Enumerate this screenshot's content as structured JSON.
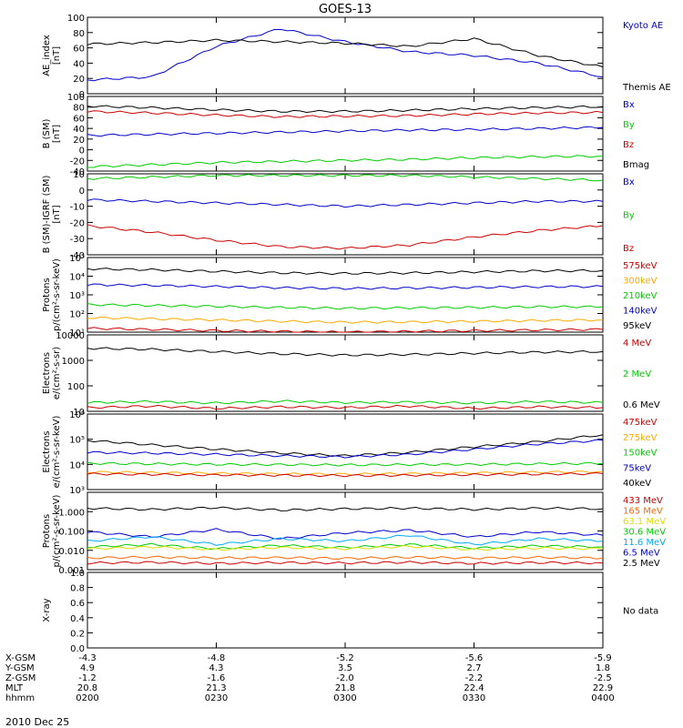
{
  "title": "GOES-13",
  "date_label": "2010 Dec 25",
  "ephemeris": {
    "rows": [
      {
        "label": "X-GSM",
        "values": [
          "-4.3",
          "-4.8",
          "-5.2",
          "-5.6",
          "-5.9"
        ]
      },
      {
        "label": "Y-GSM",
        "values": [
          "4.9",
          "4.3",
          "3.5",
          "2.7",
          "1.8"
        ]
      },
      {
        "label": "Z-GSM",
        "values": [
          "-1.2",
          "-1.6",
          "-2.0",
          "-2.2",
          "-2.5"
        ]
      },
      {
        "label": "MLT",
        "values": [
          "20.8",
          "21.3",
          "21.8",
          "22.4",
          "22.9"
        ]
      },
      {
        "label": "hhmm",
        "values": [
          "0200",
          "0230",
          "0300",
          "0330",
          "0400"
        ]
      }
    ]
  },
  "colors": {
    "black": "#000000",
    "blue": "#0000cc",
    "green": "#00cc00",
    "red": "#cc0000",
    "orange": "#ffaa00",
    "cyan": "#00aaff",
    "yellow": "#dddd00"
  },
  "chart_data": [
    {
      "type": "line",
      "panel": "ae",
      "ylabel": [
        "AE_index",
        "[nT]"
      ],
      "ylim": [
        0,
        100
      ],
      "log": false,
      "yticks": [
        0,
        20,
        40,
        60,
        80,
        100
      ],
      "yticklabels": [
        "0",
        "20",
        "40",
        "60",
        "80",
        "100"
      ],
      "x": [
        200,
        215,
        230,
        245,
        300,
        315,
        330,
        345,
        400
      ],
      "series": [
        {
          "name": "Kyoto AE",
          "color": "#0000cc",
          "values": [
            18,
            22,
            62,
            85,
            68,
            55,
            50,
            40,
            22
          ]
        },
        {
          "name": "Themis AE",
          "color": "#000000",
          "values": [
            65,
            67,
            70,
            68,
            66,
            62,
            72,
            50,
            35
          ]
        }
      ],
      "legend": [
        {
          "text": "Kyoto AE",
          "color": "#0000cc"
        },
        {
          "text": "Themis AE",
          "color": "#000000"
        }
      ]
    },
    {
      "type": "line",
      "panel": "bsm",
      "ylabel": [
        "B (SM)",
        "[nT]"
      ],
      "ylim": [
        -40,
        100
      ],
      "log": false,
      "yticks": [
        -40,
        -20,
        0,
        20,
        40,
        60,
        80,
        100
      ],
      "yticklabels": [
        "-40",
        "-20",
        "0",
        "20",
        "40",
        "60",
        "80",
        "100"
      ],
      "x": [
        200,
        215,
        230,
        245,
        300,
        315,
        330,
        345,
        400
      ],
      "series": [
        {
          "name": "Bmag",
          "color": "#000000",
          "values": [
            82,
            79,
            75,
            72,
            72,
            74,
            77,
            79,
            81
          ]
        },
        {
          "name": "Bz",
          "color": "#cc0000",
          "values": [
            72,
            69,
            65,
            62,
            63,
            64,
            67,
            69,
            70
          ]
        },
        {
          "name": "Bx",
          "color": "#0000cc",
          "values": [
            27,
            29,
            31,
            33,
            35,
            37,
            38,
            40,
            42
          ]
        },
        {
          "name": "By",
          "color": "#00cc00",
          "values": [
            -32,
            -28,
            -24,
            -22,
            -20,
            -18,
            -15,
            -13,
            -12
          ]
        }
      ],
      "legend": [
        {
          "text": "Bx",
          "color": "#0000cc"
        },
        {
          "text": "By",
          "color": "#00cc00"
        },
        {
          "text": "Bz",
          "color": "#cc0000"
        },
        {
          "text": "Bmag",
          "color": "#000000"
        }
      ]
    },
    {
      "type": "line",
      "panel": "bigrf",
      "ylabel": [
        "B (SM)-IGRF (SM)",
        "[nT]"
      ],
      "ylim": [
        -40,
        10
      ],
      "log": false,
      "yticks": [
        -40,
        -30,
        -20,
        -10,
        0,
        10
      ],
      "yticklabels": [
        "-40",
        "-30",
        "-20",
        "-10",
        "0",
        "10"
      ],
      "x": [
        200,
        215,
        230,
        245,
        300,
        315,
        330,
        345,
        400
      ],
      "series": [
        {
          "name": "By",
          "color": "#00cc00",
          "values": [
            7,
            8,
            9,
            9,
            9,
            9,
            8,
            7,
            6
          ]
        },
        {
          "name": "Bx",
          "color": "#0000cc",
          "values": [
            -6,
            -7,
            -8,
            -9,
            -10,
            -9,
            -8,
            -7,
            -7
          ]
        },
        {
          "name": "Bz",
          "color": "#cc0000",
          "values": [
            -22,
            -26,
            -31,
            -35,
            -36,
            -34,
            -29,
            -25,
            -22
          ]
        }
      ],
      "legend": [
        {
          "text": "Bx",
          "color": "#0000cc"
        },
        {
          "text": "By",
          "color": "#00cc00"
        },
        {
          "text": "Bz",
          "color": "#cc0000"
        }
      ]
    },
    {
      "type": "line",
      "panel": "protons1",
      "ylabel": [
        "Protons",
        "p/(cm²-s-sr-keV)"
      ],
      "ylim": [
        10,
        100000
      ],
      "log": true,
      "yticks": [
        10,
        100,
        1000,
        10000,
        100000
      ],
      "yticklabels": [
        "10¹",
        "10²",
        "10³",
        "10⁴",
        "10⁵"
      ],
      "x": [
        200,
        215,
        230,
        245,
        300,
        315,
        330,
        345,
        400
      ],
      "series": [
        {
          "name": "95keV",
          "color": "#000000",
          "values": [
            25000,
            22000,
            18000,
            15000,
            14000,
            15000,
            17000,
            19000,
            20000
          ]
        },
        {
          "name": "140keV",
          "color": "#0000cc",
          "values": [
            3500,
            3200,
            2800,
            2400,
            2200,
            2300,
            2500,
            2700,
            2800
          ]
        },
        {
          "name": "210keV",
          "color": "#00cc00",
          "values": [
            300,
            270,
            240,
            210,
            190,
            200,
            210,
            230,
            230
          ]
        },
        {
          "name": "300keV",
          "color": "#ffaa00",
          "values": [
            60,
            52,
            45,
            38,
            34,
            35,
            38,
            42,
            45
          ]
        },
        {
          "name": "575keV",
          "color": "#cc0000",
          "values": [
            16,
            14,
            12,
            11,
            10,
            11,
            12,
            13,
            14
          ]
        }
      ],
      "legend": [
        {
          "text": "575keV",
          "color": "#cc0000"
        },
        {
          "text": "300keV",
          "color": "#ffaa00"
        },
        {
          "text": "210keV",
          "color": "#00cc00"
        },
        {
          "text": "140keV",
          "color": "#0000cc"
        },
        {
          "text": "95keV",
          "color": "#000000"
        }
      ]
    },
    {
      "type": "line",
      "panel": "electrons1",
      "ylabel": [
        "Electrons",
        "e/(cm²-s-sr)"
      ],
      "ylim": [
        10,
        10000
      ],
      "log": true,
      "yticks": [
        10,
        100,
        1000,
        10000
      ],
      "yticklabels": [
        "10",
        "100",
        "1000",
        "10000"
      ],
      "x": [
        200,
        215,
        230,
        245,
        300,
        315,
        330,
        345,
        400
      ],
      "series": [
        {
          "name": "0.6 MeV",
          "color": "#000000",
          "values": [
            3000,
            2700,
            2200,
            1800,
            1600,
            1700,
            1900,
            2100,
            2200
          ]
        },
        {
          "name": "2 MeV",
          "color": "#00cc00",
          "values": [
            22,
            24,
            21,
            25,
            22,
            23,
            21,
            24,
            22
          ]
        },
        {
          "name": "4 MeV",
          "color": "#cc0000",
          "values": [
            14,
            16,
            13,
            15,
            14,
            16,
            13,
            15,
            14
          ]
        }
      ],
      "legend": [
        {
          "text": "4 MeV",
          "color": "#cc0000"
        },
        {
          "text": "2 MeV",
          "color": "#00cc00"
        },
        {
          "text": "0.6 MeV",
          "color": "#000000"
        }
      ]
    },
    {
      "type": "line",
      "panel": "electrons2",
      "ylabel": [
        "Electrons",
        "e/(cm²-s-sr-keV)"
      ],
      "ylim": [
        1000,
        1000000
      ],
      "log": true,
      "yticks": [
        1000,
        10000,
        100000,
        1000000
      ],
      "yticklabels": [
        "10³",
        "10⁴",
        "10⁵",
        "10⁶"
      ],
      "x": [
        200,
        215,
        230,
        245,
        300,
        315,
        330,
        345,
        400
      ],
      "series": [
        {
          "name": "40keV",
          "color": "#000000",
          "values": [
            90000,
            60000,
            40000,
            28000,
            22000,
            30000,
            50000,
            80000,
            150000
          ]
        },
        {
          "name": "75keV",
          "color": "#0000cc",
          "values": [
            30000,
            28000,
            25000,
            22000,
            20000,
            25000,
            40000,
            65000,
            90000
          ]
        },
        {
          "name": "150keV",
          "color": "#00cc00",
          "values": [
            11000,
            10500,
            10000,
            9800,
            9500,
            9800,
            10000,
            10500,
            11000
          ]
        },
        {
          "name": "275keV",
          "color": "#ffaa00",
          "values": [
            5000,
            4700,
            4400,
            4200,
            4100,
            4300,
            4600,
            4900,
            5200
          ]
        },
        {
          "name": "475keV",
          "color": "#cc0000",
          "values": [
            4200,
            4000,
            3800,
            3700,
            3600,
            3700,
            3900,
            4100,
            4300
          ]
        }
      ],
      "legend": [
        {
          "text": "475keV",
          "color": "#cc0000"
        },
        {
          "text": "275keV",
          "color": "#ffaa00"
        },
        {
          "text": "150keV",
          "color": "#00cc00"
        },
        {
          "text": "75keV",
          "color": "#0000cc"
        },
        {
          "text": "40keV",
          "color": "#000000"
        }
      ]
    },
    {
      "type": "line",
      "panel": "protons2",
      "ylabel": [
        "Protons",
        "p/(cm²-s-sr-keV)"
      ],
      "ylim": [
        0.001,
        10
      ],
      "log": true,
      "yticks": [
        0.001,
        0.01,
        0.1,
        1
      ],
      "yticklabels": [
        "0.001",
        "0.010",
        "0.100",
        "1.000"
      ],
      "x": [
        200,
        215,
        230,
        245,
        300,
        315,
        330,
        345,
        400
      ],
      "series": [
        {
          "name": "2.5 MeV",
          "color": "#000000",
          "values": [
            1.5,
            1.3,
            1.6,
            1.2,
            1.4,
            1.5,
            1.3,
            1.5,
            1.4
          ]
        },
        {
          "name": "6.5 MeV",
          "color": "#0000cc",
          "values": [
            0.09,
            0.05,
            0.12,
            0.04,
            0.08,
            0.11,
            0.05,
            0.09,
            0.06
          ]
        },
        {
          "name": "11.6 MeV",
          "color": "#00aaff",
          "values": [
            0.03,
            0.05,
            0.02,
            0.04,
            0.03,
            0.06,
            0.02,
            0.04,
            0.03
          ]
        },
        {
          "name": "30.6 MeV",
          "color": "#00cc00",
          "values": [
            0.015,
            0.02,
            0.012,
            0.018,
            0.014,
            0.02,
            0.013,
            0.017,
            0.015
          ]
        },
        {
          "name": "63.1 MeV",
          "color": "#dddd00",
          "values": [
            0.012,
            0.015,
            0.011,
            0.014,
            0.012,
            0.016,
            0.011,
            0.013,
            0.012
          ]
        },
        {
          "name": "165 MeV",
          "color": "#ff6600",
          "values": [
            0.004,
            0.0045,
            0.004,
            0.0042,
            0.0038,
            0.0044,
            0.004,
            0.0043,
            0.004
          ]
        },
        {
          "name": "433 MeV",
          "color": "#cc0000",
          "values": [
            0.0022,
            0.0024,
            0.0021,
            0.0023,
            0.0022,
            0.0024,
            0.0021,
            0.0023,
            0.0022
          ]
        }
      ],
      "legend": [
        {
          "text": "433 MeV",
          "color": "#cc0000"
        },
        {
          "text": "165 MeV",
          "color": "#ff6600"
        },
        {
          "text": "63.1 MeV",
          "color": "#dddd00"
        },
        {
          "text": "30.6 MeV",
          "color": "#00cc00"
        },
        {
          "text": "11.6 MeV",
          "color": "#00aaff"
        },
        {
          "text": "6.5 MeV",
          "color": "#0000cc"
        },
        {
          "text": "2.5 MeV",
          "color": "#000000"
        }
      ]
    },
    {
      "type": "line",
      "panel": "xray",
      "ylabel": [
        "X-ray",
        ""
      ],
      "ylim": [
        0,
        1
      ],
      "log": false,
      "yticks": [
        0,
        0.2,
        0.4,
        0.6,
        0.8,
        1.0
      ],
      "yticklabels": [
        "0.0",
        "0.2",
        "0.4",
        "0.6",
        "0.8",
        "1.0"
      ],
      "x": [],
      "series": [],
      "legend": [
        {
          "text": "No data",
          "color": "#000000"
        }
      ]
    }
  ]
}
